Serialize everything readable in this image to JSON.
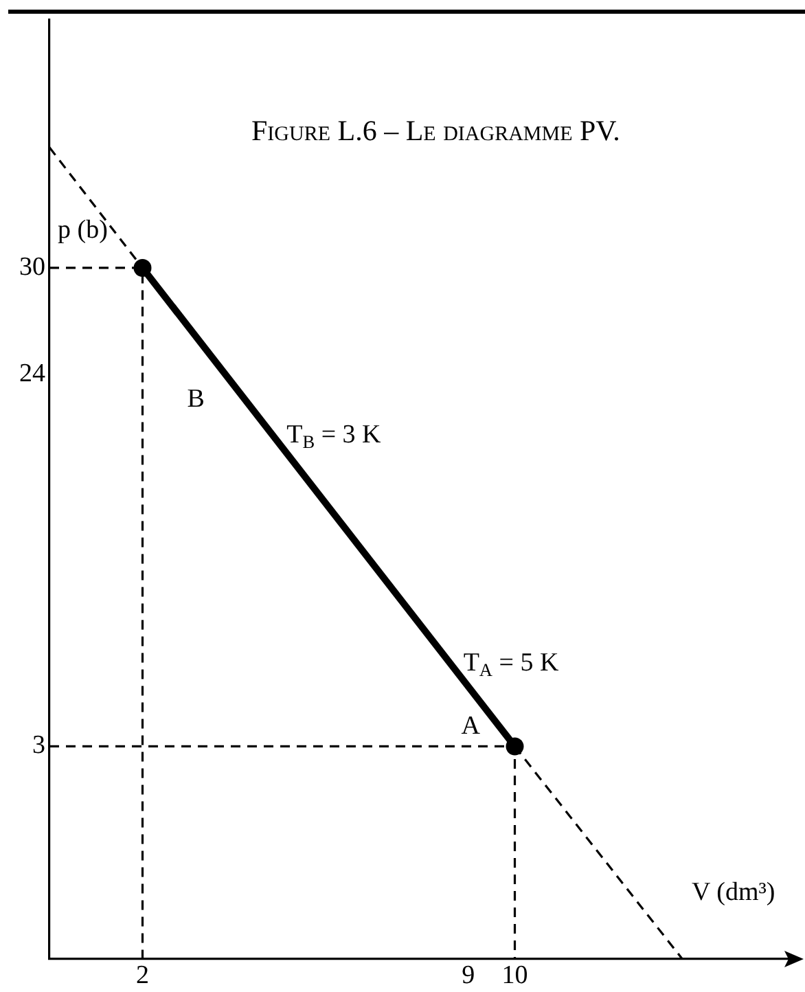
{
  "chart_data": {
    "type": "line",
    "title": "Figure L.6 – Le diagramme PV.",
    "xlabel": "V (dm³)",
    "ylabel": "p (b)",
    "xlim": [
      0,
      16
    ],
    "ylim": [
      -9,
      44
    ],
    "xticks": [
      2,
      9,
      10
    ],
    "yticks": [
      3,
      24,
      30
    ],
    "series": [
      {
        "color": "#000000",
        "x": [
          2,
          10
        ],
        "values": [
          30,
          3
        ],
        "marker": "circle",
        "line_style": "solid"
      },
      {
        "color": "#000000",
        "x": [
          0,
          2
        ],
        "values": [
          36.8,
          30
        ],
        "marker": "none",
        "line_style": "dashed"
      },
      {
        "color": "#000000",
        "x": [
          10,
          13.6
        ],
        "values": [
          3,
          -9
        ],
        "marker": "none",
        "line_style": "dashed"
      },
      {
        "color": "#000000",
        "x": [
          0,
          2,
          2
        ],
        "values": [
          30,
          30,
          -9
        ],
        "marker": "none",
        "line_style": "dashed"
      },
      {
        "color": "#000000",
        "x": [
          0,
          10,
          10
        ],
        "values": [
          3,
          3,
          -9
        ],
        "marker": "none",
        "line_style": "dashed"
      }
    ],
    "annotations": [
      "B",
      {
        "text": "T$_{B}$ = 3 K",
        "x": 4.8,
        "y": 20.5
      },
      {
        "text": "T$_{A}$ = 5 K",
        "x": 8.6,
        "y": 7.6
      },
      {
        "text": "A",
        "x": 10,
        "y": 3
      }
    ]
  }
}
